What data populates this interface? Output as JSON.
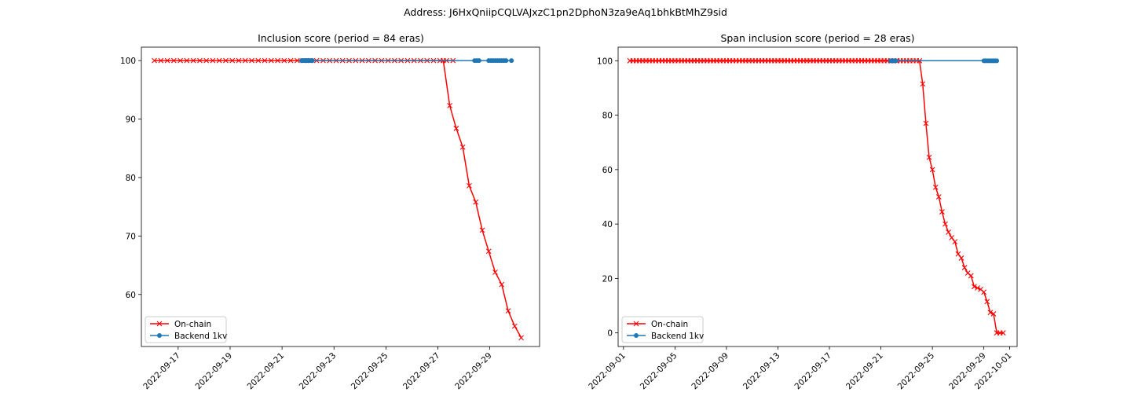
{
  "suptitle": "Address: J6HxQniipCQLVAJxzC1pn2DphoN3za9eAq1bhkBtMhZ9sid",
  "colors": {
    "onchain": "#ff0000",
    "backend": "#1f77b4"
  },
  "chart_data": [
    {
      "type": "line",
      "title": "Inclusion score (period = 84 eras)",
      "xlabel": "",
      "ylabel": "",
      "x_is_date": true,
      "xlim": [
        "2022-09-15T14:00",
        "2022-09-30T22:00"
      ],
      "ylim": [
        51.1,
        102.3
      ],
      "xticks": [
        "2022-09-17",
        "2022-09-19",
        "2022-09-21",
        "2022-09-23",
        "2022-09-25",
        "2022-09-27",
        "2022-09-29"
      ],
      "yticks": [
        60,
        70,
        80,
        90,
        100
      ],
      "legend": "lower-left",
      "grid": false,
      "series": [
        {
          "name": "On-chain",
          "marker": "x",
          "color": "#ff0000",
          "points": [
            [
              "2022-09-16T02:00",
              100
            ],
            [
              "2022-09-16T08:00",
              100
            ],
            [
              "2022-09-16T14:00",
              100
            ],
            [
              "2022-09-16T20:00",
              100
            ],
            [
              "2022-09-17T02:00",
              100
            ],
            [
              "2022-09-17T08:00",
              100
            ],
            [
              "2022-09-17T14:00",
              100
            ],
            [
              "2022-09-17T20:00",
              100
            ],
            [
              "2022-09-18T02:00",
              100
            ],
            [
              "2022-09-18T08:00",
              100
            ],
            [
              "2022-09-18T14:00",
              100
            ],
            [
              "2022-09-18T20:00",
              100
            ],
            [
              "2022-09-19T02:00",
              100
            ],
            [
              "2022-09-19T08:00",
              100
            ],
            [
              "2022-09-19T14:00",
              100
            ],
            [
              "2022-09-19T20:00",
              100
            ],
            [
              "2022-09-20T02:00",
              100
            ],
            [
              "2022-09-20T08:00",
              100
            ],
            [
              "2022-09-20T14:00",
              100
            ],
            [
              "2022-09-20T20:00",
              100
            ],
            [
              "2022-09-21T02:00",
              100
            ],
            [
              "2022-09-21T08:00",
              100
            ],
            [
              "2022-09-21T14:00",
              100
            ],
            [
              "2022-09-21T20:00",
              100
            ],
            [
              "2022-09-22T02:00",
              100
            ],
            [
              "2022-09-22T08:00",
              100
            ],
            [
              "2022-09-22T14:00",
              100
            ],
            [
              "2022-09-22T20:00",
              100
            ],
            [
              "2022-09-23T02:00",
              100
            ],
            [
              "2022-09-23T08:00",
              100
            ],
            [
              "2022-09-23T14:00",
              100
            ],
            [
              "2022-09-23T20:00",
              100
            ],
            [
              "2022-09-24T02:00",
              100
            ],
            [
              "2022-09-24T08:00",
              100
            ],
            [
              "2022-09-24T14:00",
              100
            ],
            [
              "2022-09-24T20:00",
              100
            ],
            [
              "2022-09-25T02:00",
              100
            ],
            [
              "2022-09-25T08:00",
              100
            ],
            [
              "2022-09-25T14:00",
              100
            ],
            [
              "2022-09-25T20:00",
              100
            ],
            [
              "2022-09-26T02:00",
              100
            ],
            [
              "2022-09-26T08:00",
              100
            ],
            [
              "2022-09-26T14:00",
              100
            ],
            [
              "2022-09-26T20:00",
              100
            ],
            [
              "2022-09-27T02:00",
              100
            ],
            [
              "2022-09-27T08:00",
              100
            ],
            [
              "2022-09-27T14:00",
              100
            ],
            [
              "2022-09-27T05:00",
              100
            ],
            [
              "2022-09-27T11:00",
              92.3
            ],
            [
              "2022-09-27T17:00",
              88.4
            ],
            [
              "2022-09-27T23:00",
              85.2
            ],
            [
              "2022-09-28T05:00",
              78.6
            ],
            [
              "2022-09-28T11:00",
              75.8
            ],
            [
              "2022-09-28T17:00",
              71.0
            ],
            [
              "2022-09-28T23:00",
              67.4
            ],
            [
              "2022-09-29T05:00",
              63.8
            ],
            [
              "2022-09-29T11:00",
              61.7
            ],
            [
              "2022-09-29T17:00",
              57.2
            ],
            [
              "2022-09-29T23:00",
              54.6
            ],
            [
              "2022-09-30T05:00",
              52.6
            ]
          ]
        },
        {
          "name": "Backend 1kv",
          "marker": "o",
          "color": "#1f77b4",
          "points": [
            [
              "2022-09-21T18:00",
              100
            ],
            [
              "2022-09-21T19:00",
              100
            ],
            [
              "2022-09-21T20:00",
              100
            ],
            [
              "2022-09-21T21:00",
              100
            ],
            [
              "2022-09-21T22:00",
              100
            ],
            [
              "2022-09-21T23:00",
              100
            ],
            [
              "2022-09-22T00:00",
              100
            ],
            [
              "2022-09-22T01:00",
              100
            ],
            [
              "2022-09-22T02:00",
              100
            ],
            [
              "2022-09-22T03:00",
              100
            ],
            [
              "2022-09-22T04:00",
              100
            ],
            [
              "2022-09-28T10:00",
              100
            ],
            [
              "2022-09-28T12:00",
              100
            ],
            [
              "2022-09-28T14:00",
              100
            ],
            [
              "2022-09-28T23:00",
              100
            ],
            [
              "2022-09-29T01:00",
              100
            ],
            [
              "2022-09-29T03:00",
              100
            ],
            [
              "2022-09-29T05:00",
              100
            ],
            [
              "2022-09-29T07:00",
              100
            ],
            [
              "2022-09-29T09:00",
              100
            ],
            [
              "2022-09-29T11:00",
              100
            ],
            [
              "2022-09-29T13:00",
              100
            ],
            [
              "2022-09-29T15:00",
              100
            ],
            [
              "2022-09-29T20:00",
              100
            ]
          ]
        }
      ]
    },
    {
      "type": "line",
      "title": "Span inclusion score (period = 28 eras)",
      "xlabel": "",
      "ylabel": "",
      "x_is_date": true,
      "xlim": [
        "2022-08-31T14:00",
        "2022-10-01T14:00"
      ],
      "ylim": [
        -5.0,
        105.0
      ],
      "xticks": [
        "2022-09-01",
        "2022-09-05",
        "2022-09-09",
        "2022-09-13",
        "2022-09-17",
        "2022-09-21",
        "2022-09-25",
        "2022-09-29",
        "2022-10-01"
      ],
      "yticks": [
        0,
        20,
        40,
        60,
        80,
        100
      ],
      "legend": "lower-left",
      "grid": false,
      "series": [
        {
          "name": "On-chain",
          "marker": "x",
          "color": "#ff0000",
          "points": [
            [
              "2022-09-01T12:00",
              100
            ],
            [
              "2022-09-01T18:00",
              100
            ],
            [
              "2022-09-02T00:00",
              100
            ],
            [
              "2022-09-02T06:00",
              100
            ],
            [
              "2022-09-02T12:00",
              100
            ],
            [
              "2022-09-02T18:00",
              100
            ],
            [
              "2022-09-03T00:00",
              100
            ],
            [
              "2022-09-03T06:00",
              100
            ],
            [
              "2022-09-03T12:00",
              100
            ],
            [
              "2022-09-03T18:00",
              100
            ],
            [
              "2022-09-04T00:00",
              100
            ],
            [
              "2022-09-04T06:00",
              100
            ],
            [
              "2022-09-04T12:00",
              100
            ],
            [
              "2022-09-04T18:00",
              100
            ],
            [
              "2022-09-05T00:00",
              100
            ],
            [
              "2022-09-05T06:00",
              100
            ],
            [
              "2022-09-05T12:00",
              100
            ],
            [
              "2022-09-05T18:00",
              100
            ],
            [
              "2022-09-06T00:00",
              100
            ],
            [
              "2022-09-06T06:00",
              100
            ],
            [
              "2022-09-06T12:00",
              100
            ],
            [
              "2022-09-06T18:00",
              100
            ],
            [
              "2022-09-07T00:00",
              100
            ],
            [
              "2022-09-07T06:00",
              100
            ],
            [
              "2022-09-07T12:00",
              100
            ],
            [
              "2022-09-07T18:00",
              100
            ],
            [
              "2022-09-08T00:00",
              100
            ],
            [
              "2022-09-08T06:00",
              100
            ],
            [
              "2022-09-08T12:00",
              100
            ],
            [
              "2022-09-08T18:00",
              100
            ],
            [
              "2022-09-09T00:00",
              100
            ],
            [
              "2022-09-09T06:00",
              100
            ],
            [
              "2022-09-09T12:00",
              100
            ],
            [
              "2022-09-09T18:00",
              100
            ],
            [
              "2022-09-10T00:00",
              100
            ],
            [
              "2022-09-10T06:00",
              100
            ],
            [
              "2022-09-10T12:00",
              100
            ],
            [
              "2022-09-10T18:00",
              100
            ],
            [
              "2022-09-11T00:00",
              100
            ],
            [
              "2022-09-11T06:00",
              100
            ],
            [
              "2022-09-11T12:00",
              100
            ],
            [
              "2022-09-11T18:00",
              100
            ],
            [
              "2022-09-12T00:00",
              100
            ],
            [
              "2022-09-12T06:00",
              100
            ],
            [
              "2022-09-12T12:00",
              100
            ],
            [
              "2022-09-12T18:00",
              100
            ],
            [
              "2022-09-13T00:00",
              100
            ],
            [
              "2022-09-13T06:00",
              100
            ],
            [
              "2022-09-13T12:00",
              100
            ],
            [
              "2022-09-13T18:00",
              100
            ],
            [
              "2022-09-14T00:00",
              100
            ],
            [
              "2022-09-14T06:00",
              100
            ],
            [
              "2022-09-14T12:00",
              100
            ],
            [
              "2022-09-14T18:00",
              100
            ],
            [
              "2022-09-15T00:00",
              100
            ],
            [
              "2022-09-15T06:00",
              100
            ],
            [
              "2022-09-15T12:00",
              100
            ],
            [
              "2022-09-15T18:00",
              100
            ],
            [
              "2022-09-16T00:00",
              100
            ],
            [
              "2022-09-16T06:00",
              100
            ],
            [
              "2022-09-16T12:00",
              100
            ],
            [
              "2022-09-16T18:00",
              100
            ],
            [
              "2022-09-17T00:00",
              100
            ],
            [
              "2022-09-17T06:00",
              100
            ],
            [
              "2022-09-17T12:00",
              100
            ],
            [
              "2022-09-17T18:00",
              100
            ],
            [
              "2022-09-18T00:00",
              100
            ],
            [
              "2022-09-18T06:00",
              100
            ],
            [
              "2022-09-18T12:00",
              100
            ],
            [
              "2022-09-18T18:00",
              100
            ],
            [
              "2022-09-19T00:00",
              100
            ],
            [
              "2022-09-19T06:00",
              100
            ],
            [
              "2022-09-19T12:00",
              100
            ],
            [
              "2022-09-19T18:00",
              100
            ],
            [
              "2022-09-20T00:00",
              100
            ],
            [
              "2022-09-20T06:00",
              100
            ],
            [
              "2022-09-20T12:00",
              100
            ],
            [
              "2022-09-20T18:00",
              100
            ],
            [
              "2022-09-21T00:00",
              100
            ],
            [
              "2022-09-21T06:00",
              100
            ],
            [
              "2022-09-21T12:00",
              100
            ],
            [
              "2022-09-21T18:00",
              100
            ],
            [
              "2022-09-22T00:00",
              100
            ],
            [
              "2022-09-22T06:00",
              100
            ],
            [
              "2022-09-22T12:00",
              100
            ],
            [
              "2022-09-22T18:00",
              100
            ],
            [
              "2022-09-23T00:00",
              100
            ],
            [
              "2022-09-23T06:00",
              100
            ],
            [
              "2022-09-23T12:00",
              100
            ],
            [
              "2022-09-23T18:00",
              100
            ],
            [
              "2022-09-24T00:00",
              100
            ],
            [
              "2022-09-24T06:00",
              91.5
            ],
            [
              "2022-09-24T12:00",
              77.0
            ],
            [
              "2022-09-24T18:00",
              64.5
            ],
            [
              "2022-09-25T00:00",
              60.0
            ],
            [
              "2022-09-25T06:00",
              53.5
            ],
            [
              "2022-09-25T12:00",
              50.0
            ],
            [
              "2022-09-25T18:00",
              44.5
            ],
            [
              "2022-09-26T00:00",
              40.0
            ],
            [
              "2022-09-26T06:00",
              37.0
            ],
            [
              "2022-09-26T12:00",
              35.0
            ],
            [
              "2022-09-26T18:00",
              33.5
            ],
            [
              "2022-09-27T00:00",
              29.0
            ],
            [
              "2022-09-27T06:00",
              27.5
            ],
            [
              "2022-09-27T12:00",
              24.0
            ],
            [
              "2022-09-27T18:00",
              22.0
            ],
            [
              "2022-09-28T00:00",
              21.0
            ],
            [
              "2022-09-28T06:00",
              17.0
            ],
            [
              "2022-09-28T12:00",
              16.5
            ],
            [
              "2022-09-28T18:00",
              16.0
            ],
            [
              "2022-09-29T00:00",
              15.0
            ],
            [
              "2022-09-29T06:00",
              11.5
            ],
            [
              "2022-09-29T12:00",
              7.5
            ],
            [
              "2022-09-29T18:00",
              7.0
            ],
            [
              "2022-09-30T00:00",
              0
            ],
            [
              "2022-09-30T06:00",
              0
            ],
            [
              "2022-09-30T12:00",
              0
            ]
          ]
        },
        {
          "name": "Backend 1kv",
          "marker": "o",
          "color": "#1f77b4",
          "points": [
            [
              "2022-09-21T18:00",
              100
            ],
            [
              "2022-09-21T20:00",
              100
            ],
            [
              "2022-09-21T22:00",
              100
            ],
            [
              "2022-09-22T00:00",
              100
            ],
            [
              "2022-09-22T02:00",
              100
            ],
            [
              "2022-09-22T04:00",
              100
            ],
            [
              "2022-09-29T00:00",
              100
            ],
            [
              "2022-09-29T03:00",
              100
            ],
            [
              "2022-09-29T06:00",
              100
            ],
            [
              "2022-09-29T09:00",
              100
            ],
            [
              "2022-09-29T12:00",
              100
            ],
            [
              "2022-09-29T15:00",
              100
            ],
            [
              "2022-09-29T18:00",
              100
            ],
            [
              "2022-09-29T21:00",
              100
            ],
            [
              "2022-09-30T00:00",
              100
            ]
          ]
        }
      ]
    }
  ]
}
